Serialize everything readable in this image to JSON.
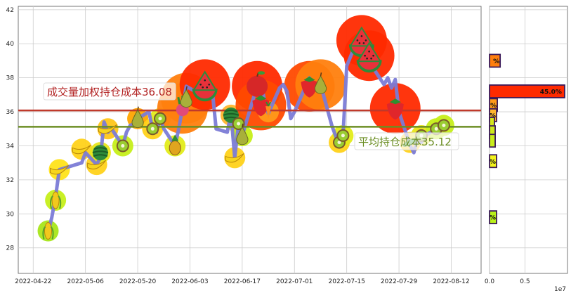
{
  "chart_data": [
    {
      "type": "line",
      "x_ticks": [
        "2022-04-22",
        "2022-05-06",
        "2022-05-20",
        "2022-06-03",
        "2022-06-17",
        "2022-07-01",
        "2022-07-15",
        "2022-07-29",
        "2022-08-12"
      ],
      "y_ticks": [
        28,
        30,
        32,
        34,
        36,
        38,
        40,
        42
      ],
      "xlim": [
        "2022-04-18",
        "2022-08-20"
      ],
      "ylim": [
        26.5,
        42.2
      ],
      "grid": true,
      "series": [
        {
          "values": [
            {
              "x": "2022-04-25",
              "y": 29.2
            },
            {
              "x": "2022-04-26",
              "y": 28.9
            },
            {
              "x": "2022-04-27",
              "y": 29.8
            },
            {
              "x": "2022-04-28",
              "y": 31.0
            },
            {
              "x": "2022-04-29",
              "y": 32.6
            },
            {
              "x": "2022-05-05",
              "y": 33.0
            },
            {
              "x": "2022-05-06",
              "y": 33.6
            },
            {
              "x": "2022-05-09",
              "y": 32.9
            },
            {
              "x": "2022-05-10",
              "y": 33.3
            },
            {
              "x": "2022-05-11",
              "y": 35.4
            },
            {
              "x": "2022-05-12",
              "y": 34.8
            },
            {
              "x": "2022-05-13",
              "y": 35.0
            },
            {
              "x": "2022-05-16",
              "y": 34.0
            },
            {
              "x": "2022-05-17",
              "y": 34.8
            },
            {
              "x": "2022-05-18",
              "y": 35.2
            },
            {
              "x": "2022-05-19",
              "y": 35.3
            },
            {
              "x": "2022-05-20",
              "y": 35.6
            },
            {
              "x": "2022-05-23",
              "y": 36.0
            },
            {
              "x": "2022-05-24",
              "y": 35.0
            },
            {
              "x": "2022-05-25",
              "y": 34.8
            },
            {
              "x": "2022-05-26",
              "y": 35.6
            },
            {
              "x": "2022-05-27",
              "y": 35.0
            },
            {
              "x": "2022-05-30",
              "y": 34.0
            },
            {
              "x": "2022-05-31",
              "y": 35.0
            },
            {
              "x": "2022-06-01",
              "y": 36.2
            },
            {
              "x": "2022-06-02",
              "y": 37.5
            },
            {
              "x": "2022-06-06",
              "y": 37.0
            },
            {
              "x": "2022-06-07",
              "y": 37.6
            },
            {
              "x": "2022-06-08",
              "y": 37.3
            },
            {
              "x": "2022-06-09",
              "y": 37.2
            },
            {
              "x": "2022-06-10",
              "y": 35.0
            },
            {
              "x": "2022-06-13",
              "y": 34.8
            },
            {
              "x": "2022-06-14",
              "y": 35.9
            },
            {
              "x": "2022-06-15",
              "y": 33.3
            },
            {
              "x": "2022-06-16",
              "y": 35.3
            },
            {
              "x": "2022-06-17",
              "y": 34.6
            },
            {
              "x": "2022-06-20",
              "y": 36.8
            },
            {
              "x": "2022-06-21",
              "y": 37.5
            },
            {
              "x": "2022-06-22",
              "y": 37.8
            },
            {
              "x": "2022-06-23",
              "y": 36.6
            },
            {
              "x": "2022-06-24",
              "y": 35.9
            },
            {
              "x": "2022-06-27",
              "y": 37.4
            },
            {
              "x": "2022-06-28",
              "y": 37.6
            },
            {
              "x": "2022-06-29",
              "y": 37.2
            },
            {
              "x": "2022-06-30",
              "y": 35.6
            },
            {
              "x": "2022-07-01",
              "y": 36.0
            },
            {
              "x": "2022-07-04",
              "y": 37.5
            },
            {
              "x": "2022-07-05",
              "y": 38.0
            },
            {
              "x": "2022-07-06",
              "y": 37.6
            },
            {
              "x": "2022-07-07",
              "y": 37.3
            },
            {
              "x": "2022-07-08",
              "y": 37.6
            },
            {
              "x": "2022-07-11",
              "y": 35.2
            },
            {
              "x": "2022-07-12",
              "y": 34.6
            },
            {
              "x": "2022-07-13",
              "y": 34.0
            },
            {
              "x": "2022-07-14",
              "y": 34.6
            },
            {
              "x": "2022-07-15",
              "y": 38.7
            },
            {
              "x": "2022-07-18",
              "y": 40.3
            },
            {
              "x": "2022-07-19",
              "y": 40.6
            },
            {
              "x": "2022-07-20",
              "y": 39.3
            },
            {
              "x": "2022-07-21",
              "y": 39.3
            },
            {
              "x": "2022-07-22",
              "y": 38.6
            },
            {
              "x": "2022-07-25",
              "y": 37.6
            },
            {
              "x": "2022-07-26",
              "y": 38.0
            },
            {
              "x": "2022-07-27",
              "y": 37.4
            },
            {
              "x": "2022-07-28",
              "y": 37.9
            },
            {
              "x": "2022-07-29",
              "y": 36.0
            },
            {
              "x": "2022-08-01",
              "y": 34.0
            },
            {
              "x": "2022-08-02",
              "y": 33.6
            },
            {
              "x": "2022-08-03",
              "y": 34.5
            },
            {
              "x": "2022-08-04",
              "y": 34.2
            },
            {
              "x": "2022-08-05",
              "y": 34.6
            },
            {
              "x": "2022-08-08",
              "y": 35.0
            },
            {
              "x": "2022-08-09",
              "y": 35.3
            },
            {
              "x": "2022-08-10",
              "y": 35.2
            }
          ]
        }
      ],
      "hlines": [
        {
          "y": 36.08,
          "color": "#c0392b",
          "label": "成交量加权持仓成本36.08"
        },
        {
          "y": 35.12,
          "color": "#6b8e23",
          "label": "平均持仓成本35.12"
        }
      ]
    },
    {
      "type": "bar",
      "orientation": "horizontal",
      "x_ticks": [
        "0.0",
        "0.5"
      ],
      "x_multiplier": "1e7",
      "xlim": [
        0,
        11000000.0
      ],
      "bars": [
        {
          "y": 39.0,
          "value": 1500000,
          "label": "%",
          "color": "#ff7f0e"
        },
        {
          "y": 37.2,
          "value": 10600000,
          "label": "45.0%",
          "color": "#ff2a00"
        },
        {
          "y": 36.4,
          "value": 1100000,
          "label": "%",
          "color": "#ff9a1a"
        },
        {
          "y": 35.8,
          "value": 1000000,
          "label": "%",
          "color": "#ffb52e"
        },
        {
          "y": 35.3,
          "value": 700000,
          "label": "",
          "color": "#d4e61b"
        },
        {
          "y": 34.8,
          "value": 800000,
          "label": "",
          "color": "#cde81b"
        },
        {
          "y": 34.3,
          "value": 800000,
          "label": "",
          "color": "#c9ec1a"
        },
        {
          "y": 33.1,
          "value": 1000000,
          "label": "%",
          "color": "#f2f21a"
        },
        {
          "y": 29.8,
          "value": 1000000,
          "label": "%",
          "color": "#b9f01a"
        }
      ]
    }
  ],
  "colors": {
    "line": "#7b7bd6",
    "weighted_cost_line": "#c0392b",
    "avg_cost_line": "#6b8e23",
    "grid": "#cccccc",
    "axes": "#555555"
  },
  "decorations": [
    {
      "x": "2022-04-26",
      "y": 29.0,
      "icon": "corn",
      "color": "#a8e61a"
    },
    {
      "x": "2022-04-28",
      "y": 30.8,
      "icon": "corn",
      "color": "#c6ef1a"
    },
    {
      "x": "2022-04-29",
      "y": 32.6,
      "icon": "banana",
      "color": "#ffe31a"
    },
    {
      "x": "2022-05-05",
      "y": 33.8,
      "icon": "banana",
      "color": "#ffd21a"
    },
    {
      "x": "2022-05-09",
      "y": 32.9,
      "icon": "banana",
      "color": "#ffd21a"
    },
    {
      "x": "2022-05-10",
      "y": 33.6,
      "icon": "watermelon-slice",
      "color": "#e8e61a"
    },
    {
      "x": "2022-05-12",
      "y": 35.0,
      "icon": "banana",
      "color": "#ffc61a"
    },
    {
      "x": "2022-05-16",
      "y": 34.0,
      "icon": "kiwi",
      "color": "#c6ef1a"
    },
    {
      "x": "2022-05-20",
      "y": 35.6,
      "icon": "pear",
      "color": "#ffa500"
    },
    {
      "x": "2022-05-24",
      "y": 35.0,
      "icon": "kiwi",
      "color": "#ffd21a"
    },
    {
      "x": "2022-05-26",
      "y": 35.6,
      "icon": "kiwi",
      "color": "#e3ec1a"
    },
    {
      "x": "2022-05-30",
      "y": 34.0,
      "icon": "pineapple",
      "color": "#e3ec1a"
    },
    {
      "x": "2022-06-01",
      "y": 36.2,
      "icon": "radish",
      "color": "#ff7f0e"
    },
    {
      "x": "2022-06-02",
      "y": 36.8,
      "icon": "pear",
      "color": "#ff7f0e"
    },
    {
      "x": "2022-06-07",
      "y": 37.6,
      "icon": "watermelon",
      "color": "#ff2a00"
    },
    {
      "x": "2022-06-14",
      "y": 35.8,
      "icon": "watermelon-slice",
      "color": "#ffb52e"
    },
    {
      "x": "2022-06-15",
      "y": 33.3,
      "icon": "banana",
      "color": "#ffd21a"
    },
    {
      "x": "2022-06-16",
      "y": 35.3,
      "icon": "kiwi",
      "color": "#e8e61a"
    },
    {
      "x": "2022-06-17",
      "y": 34.6,
      "icon": "pear",
      "color": "#c6ef1a"
    },
    {
      "x": "2022-06-21",
      "y": 37.5,
      "icon": "apple",
      "color": "#ff2a00"
    },
    {
      "x": "2022-06-22",
      "y": 36.4,
      "icon": "strawberry",
      "color": "#ff4a00"
    },
    {
      "x": "2022-06-24",
      "y": 36.0,
      "icon": "carrot",
      "color": "#ff9a1a"
    },
    {
      "x": "2022-07-05",
      "y": 37.5,
      "icon": "strawberry",
      "color": "#ff4a00"
    },
    {
      "x": "2022-07-08",
      "y": 37.6,
      "icon": "pear",
      "color": "#ff7f0e"
    },
    {
      "x": "2022-07-13",
      "y": 34.2,
      "icon": "kiwi",
      "color": "#ffd21a"
    },
    {
      "x": "2022-07-14",
      "y": 34.6,
      "icon": "kiwi",
      "color": "#e3ec1a"
    },
    {
      "x": "2022-07-19",
      "y": 40.2,
      "icon": "watermelon",
      "color": "#ff2a00"
    },
    {
      "x": "2022-07-21",
      "y": 39.3,
      "icon": "watermelon",
      "color": "#ff2a00"
    },
    {
      "x": "2022-07-28",
      "y": 36.2,
      "icon": "strawberry",
      "color": "#ff2a00"
    },
    {
      "x": "2022-08-01",
      "y": 34.2,
      "icon": "cucumber",
      "color": "#ffd21a"
    },
    {
      "x": "2022-08-04",
      "y": 34.6,
      "icon": "kiwi",
      "color": "#e8e61a"
    },
    {
      "x": "2022-08-08",
      "y": 35.0,
      "icon": "kiwi",
      "color": "#c6ef1a"
    },
    {
      "x": "2022-08-10",
      "y": 35.2,
      "icon": "kiwi",
      "color": "#c6ef1a"
    }
  ]
}
